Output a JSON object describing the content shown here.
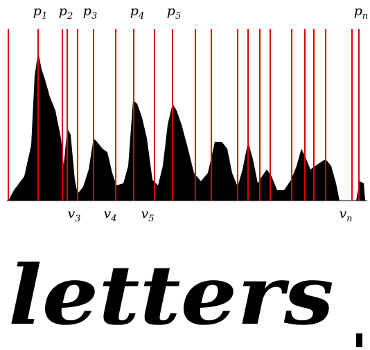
{
  "peak_labels": [
    {
      "base": "p",
      "sub": "1"
    },
    {
      "base": "p",
      "sub": "2"
    },
    {
      "base": "p",
      "sub": "3"
    },
    {
      "base": "p",
      "sub": "4"
    },
    {
      "base": "p",
      "sub": "5"
    },
    {
      "base": "p",
      "sub": "n"
    }
  ],
  "valley_labels": [
    {
      "base": "v",
      "sub": "3"
    },
    {
      "base": "v",
      "sub": "4"
    },
    {
      "base": "v",
      "sub": "5"
    },
    {
      "base": "v",
      "sub": "n"
    }
  ],
  "handwriting": "letters"
}
